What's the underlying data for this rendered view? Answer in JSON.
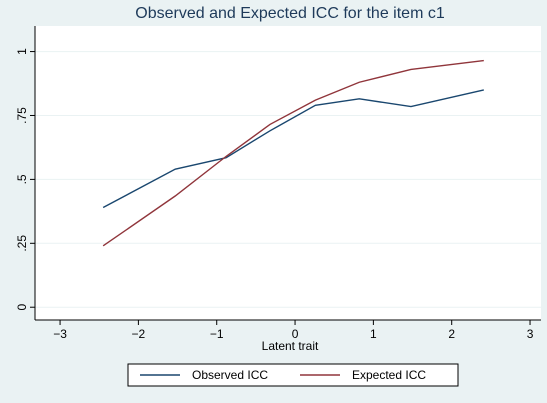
{
  "chart_data": {
    "type": "line",
    "title": "Observed and Expected ICC for the item c1",
    "x_label": "Latent trait",
    "x": [
      -2.45,
      -1.53,
      -0.88,
      -0.32,
      0.26,
      0.82,
      1.48,
      2.41
    ],
    "series": [
      {
        "name": "Observed ICC",
        "color": "#1a476f",
        "values": [
          0.39,
          0.54,
          0.585,
          0.69,
          0.79,
          0.815,
          0.785,
          0.85
        ]
      },
      {
        "name": "Expected ICC",
        "color": "#90353b",
        "values": [
          0.24,
          0.435,
          0.59,
          0.715,
          0.81,
          0.88,
          0.93,
          0.965
        ]
      }
    ],
    "xlim": [
      -3.32,
      3.14
    ],
    "ylim": [
      -0.05,
      1.1
    ],
    "xticks": [
      {
        "value": -3,
        "label": "−3"
      },
      {
        "value": -2,
        "label": "−2"
      },
      {
        "value": -1,
        "label": "−1"
      },
      0,
      1,
      2,
      3
    ],
    "yticks": [
      0,
      {
        "value": 0.25,
        "label": ".25"
      },
      {
        "value": 0.5,
        "label": ".5"
      },
      {
        "value": 0.75,
        "label": ".75"
      },
      1
    ],
    "grid": true,
    "legend": "bottom"
  }
}
